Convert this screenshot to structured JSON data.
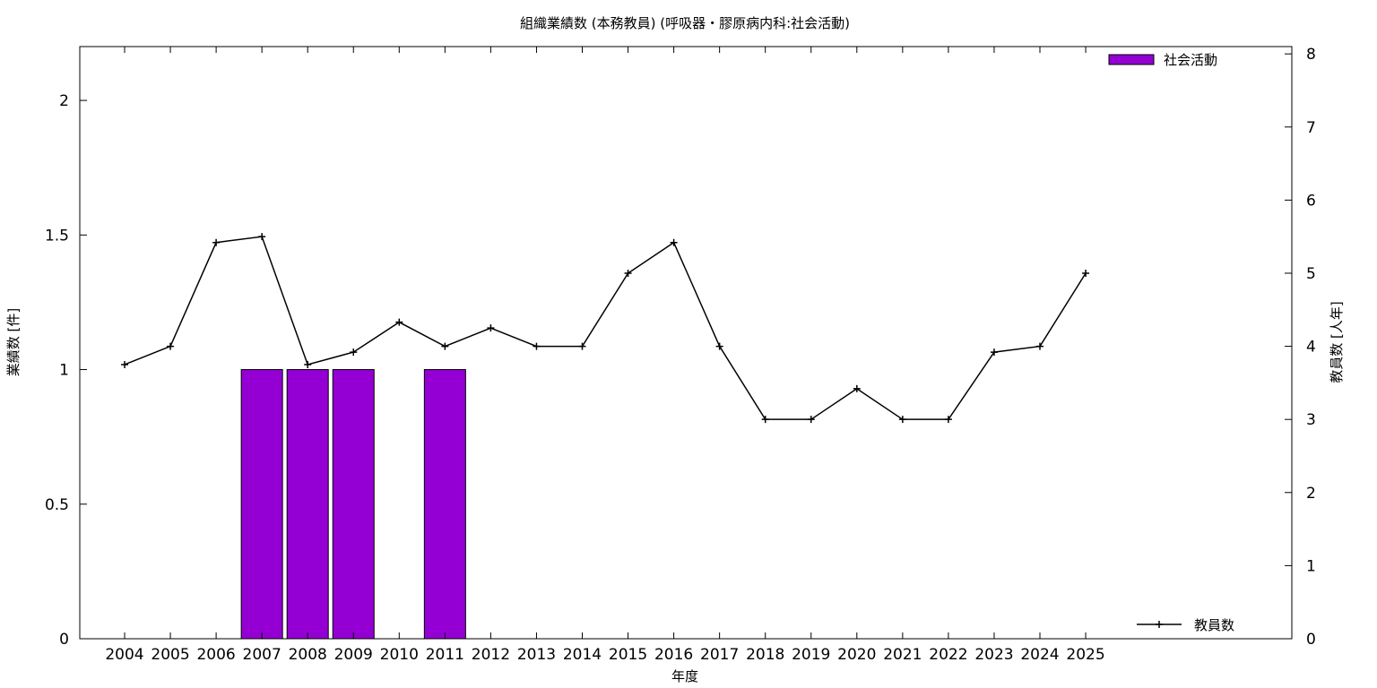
{
  "chart_data": {
    "type": "bar",
    "title": "組織業績数 (本務教員) (呼吸器・膠原病内科:社会活動)",
    "xlabel": "年度",
    "ylabel": "業績数 [件]",
    "y2label": "教員数 [人年]",
    "categories": [
      "2004",
      "2005",
      "2006",
      "2007",
      "2008",
      "2009",
      "2010",
      "2011",
      "2012",
      "2013",
      "2014",
      "2015",
      "2016",
      "2017",
      "2018",
      "2019",
      "2020",
      "2021",
      "2022",
      "2023",
      "2024",
      "2025"
    ],
    "ylim": [
      0,
      2.2
    ],
    "yticks": [
      "0",
      "0.5",
      "1",
      "1.5",
      "2"
    ],
    "y2lim": [
      0,
      8.1
    ],
    "y2ticks": [
      "0",
      "1",
      "2",
      "3",
      "4",
      "5",
      "6",
      "7",
      "8"
    ],
    "grid": false,
    "series": [
      {
        "name": "社会活動",
        "type": "bar",
        "axis": "left",
        "color": "#9400d3",
        "legend_position": "top-right",
        "values": [
          0,
          0,
          0,
          1,
          1,
          1,
          0,
          1,
          0,
          0,
          0,
          0,
          0,
          0,
          0,
          0,
          0,
          0,
          0,
          0,
          0,
          0
        ]
      },
      {
        "name": "教員数",
        "type": "line",
        "axis": "right",
        "color": "#000000",
        "marker": "plus",
        "legend_position": "bottom-right",
        "values": [
          3.75,
          4.0,
          5.42,
          5.5,
          3.75,
          3.92,
          4.33,
          4.0,
          4.25,
          4.0,
          4.0,
          5.0,
          5.42,
          4.0,
          3.0,
          3.0,
          3.42,
          3.0,
          3.0,
          3.92,
          4.0,
          5.0
        ]
      }
    ]
  }
}
